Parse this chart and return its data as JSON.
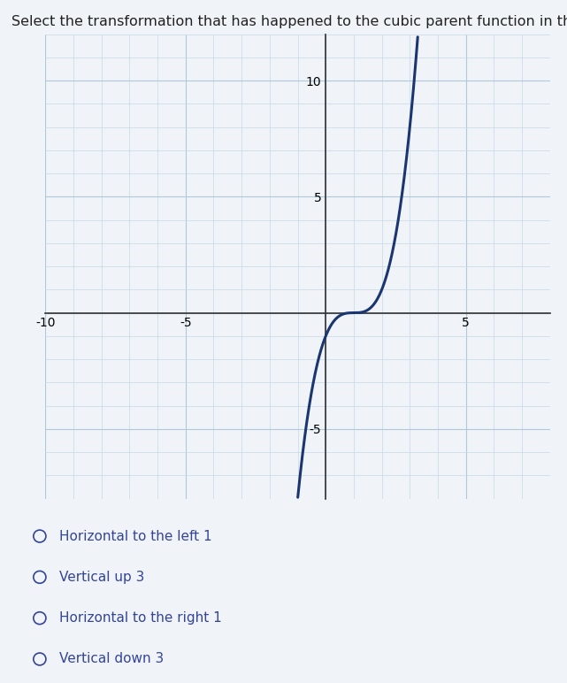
{
  "title": "Select the transformation that has happened to the cubic parent function in the graph below..",
  "title_fontsize": 11.5,
  "title_color": "#222222",
  "xlim": [
    -10,
    8
  ],
  "ylim": [
    -8,
    12
  ],
  "xticks": [
    -10,
    -5,
    0,
    5
  ],
  "yticks": [
    -5,
    0,
    5,
    10
  ],
  "x_shift": 1,
  "curve_color": "#1a3570",
  "curve_linewidth": 2.2,
  "minor_grid_color": "#c5d8e8",
  "major_grid_color": "#b0c8dc",
  "minor_grid_lw": 0.5,
  "major_grid_lw": 0.8,
  "axis_color": "#333333",
  "axis_linewidth": 1.2,
  "plot_bg_color": "#f0f4f8",
  "fig_bg_color": "#f0f4f8",
  "tick_label_color": "#222222",
  "tick_fontsize": 10,
  "choices": [
    "Horizontal to the left 1",
    "Vertical up 3",
    "Horizontal to the right 1",
    "Vertical down 3"
  ],
  "choices_fontsize": 11,
  "choices_color": "#334499",
  "radio_color": "#334499"
}
